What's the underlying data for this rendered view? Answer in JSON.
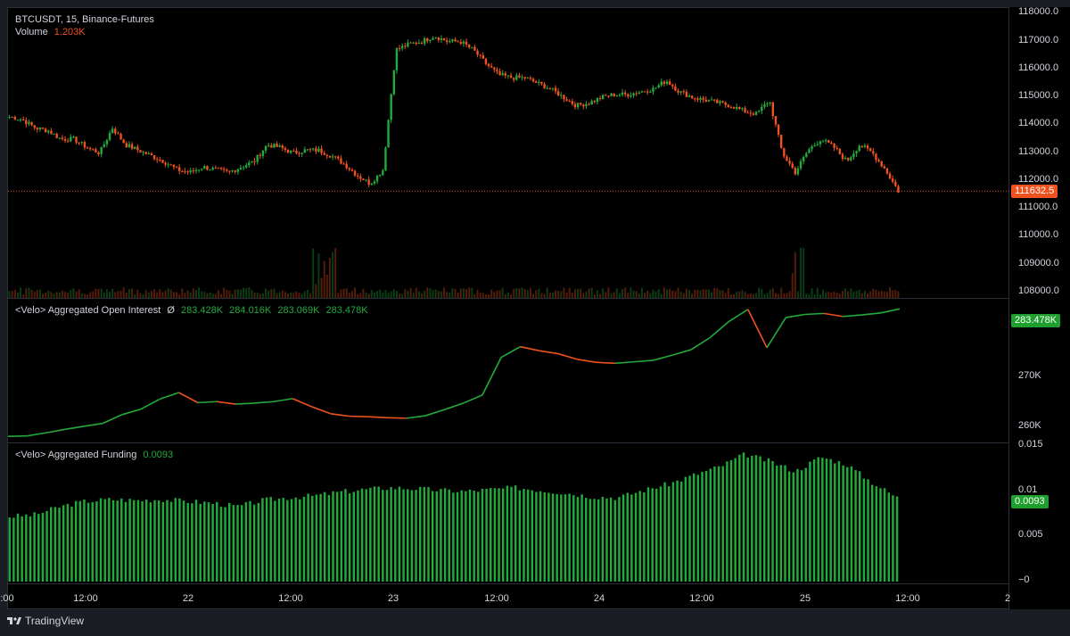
{
  "main": {
    "symbol_title": "BTCUSDT, 15, Binance-Futures",
    "volume_label": "Volume",
    "volume_value": "1.203K",
    "last_price": "111632.5",
    "yticks": [
      "118000.0",
      "117000.0",
      "116000.0",
      "115000.0",
      "114000.0",
      "113000.0",
      "112000.0",
      "111000.0",
      "110000.0",
      "109000.0",
      "108000.0"
    ]
  },
  "oi": {
    "title": "<Velo> Aggregated Open Interest",
    "flag": "Ø",
    "values": [
      "283.428K",
      "284.016K",
      "283.069K",
      "283.478K"
    ],
    "badge": "283.478K",
    "yticks": [
      "280K",
      "270K",
      "260K"
    ]
  },
  "funding": {
    "title": "<Velo> Aggregated Funding",
    "value": "0.0093",
    "badge": "0.0093",
    "yticks": [
      "0.015",
      "0.01",
      "0.005",
      "−0"
    ]
  },
  "xaxis": {
    "ticks": [
      ":00",
      "12:00",
      "22",
      "12:00",
      "23",
      "12:00",
      "24",
      "12:00",
      "25",
      "12:00",
      "2"
    ]
  },
  "footer": {
    "brand": "TradingView"
  },
  "colors": {
    "up": "#22ab3c",
    "down": "#f0521e",
    "oi_badge": "#1fa02e",
    "price_badge": "#f0521e"
  },
  "chart_data": [
    {
      "type": "candlestick",
      "title": "BTCUSDT, 15, Binance-Futures",
      "ylim": [
        107800,
        118200
      ],
      "x": [
        "21 00:00",
        "21 12:00",
        "22 00:00",
        "22 12:00",
        "23 00:00",
        "23 12:00",
        "24 00:00",
        "24 12:00",
        "25 00:00",
        "25 12:00"
      ],
      "close_series": [
        114300,
        114200,
        113900,
        113800,
        113500,
        113500,
        113200,
        113000,
        113900,
        113300,
        113100,
        112900,
        112700,
        112400,
        112300,
        112500,
        112400,
        112300,
        112500,
        112700,
        113300,
        113200,
        113000,
        113100,
        113100,
        112900,
        112600,
        112200,
        111900,
        112400,
        116700,
        116900,
        117000,
        117200,
        117000,
        117000,
        116700,
        116200,
        115800,
        115700,
        115700,
        115500,
        115300,
        115000,
        114700,
        114800,
        115000,
        115100,
        115100,
        115200,
        115300,
        115600,
        115200,
        115000,
        114900,
        114800,
        114700,
        114500,
        114400,
        114900,
        113000,
        112300,
        113100,
        113500,
        113200,
        112700,
        113300,
        113000,
        112400,
        111632
      ]
    },
    {
      "type": "line",
      "title": "<Velo> Aggregated Open Interest",
      "ylim": [
        257000,
        285500
      ],
      "values": [
        258200,
        258300,
        258900,
        259600,
        260200,
        260800,
        262500,
        263600,
        265600,
        266900,
        264900,
        265100,
        264600,
        264800,
        265100,
        265700,
        264100,
        262700,
        262200,
        262100,
        261900,
        261800,
        262300,
        263500,
        264800,
        266400,
        273900,
        276000,
        275200,
        274600,
        273500,
        272900,
        272700,
        273000,
        273300,
        274300,
        275400,
        277800,
        281000,
        283400,
        275800,
        281800,
        282400,
        282600,
        282000,
        282300,
        282700,
        283500
      ]
    },
    {
      "type": "bar",
      "title": "<Velo> Aggregated Funding",
      "ylim": [
        -0.0001,
        0.0153
      ],
      "values": [
        0.0072,
        0.0074,
        0.0083,
        0.0089,
        0.0091,
        0.009,
        0.0091,
        0.0089,
        0.0087,
        0.0083,
        0.009,
        0.0093,
        0.0095,
        0.0099,
        0.0102,
        0.0104,
        0.0103,
        0.0101,
        0.01,
        0.0102,
        0.0104,
        0.0101,
        0.0098,
        0.0094,
        0.0093,
        0.0101,
        0.0108,
        0.0118,
        0.0127,
        0.0141,
        0.0133,
        0.0122,
        0.0138,
        0.013,
        0.011,
        0.0093
      ]
    }
  ]
}
